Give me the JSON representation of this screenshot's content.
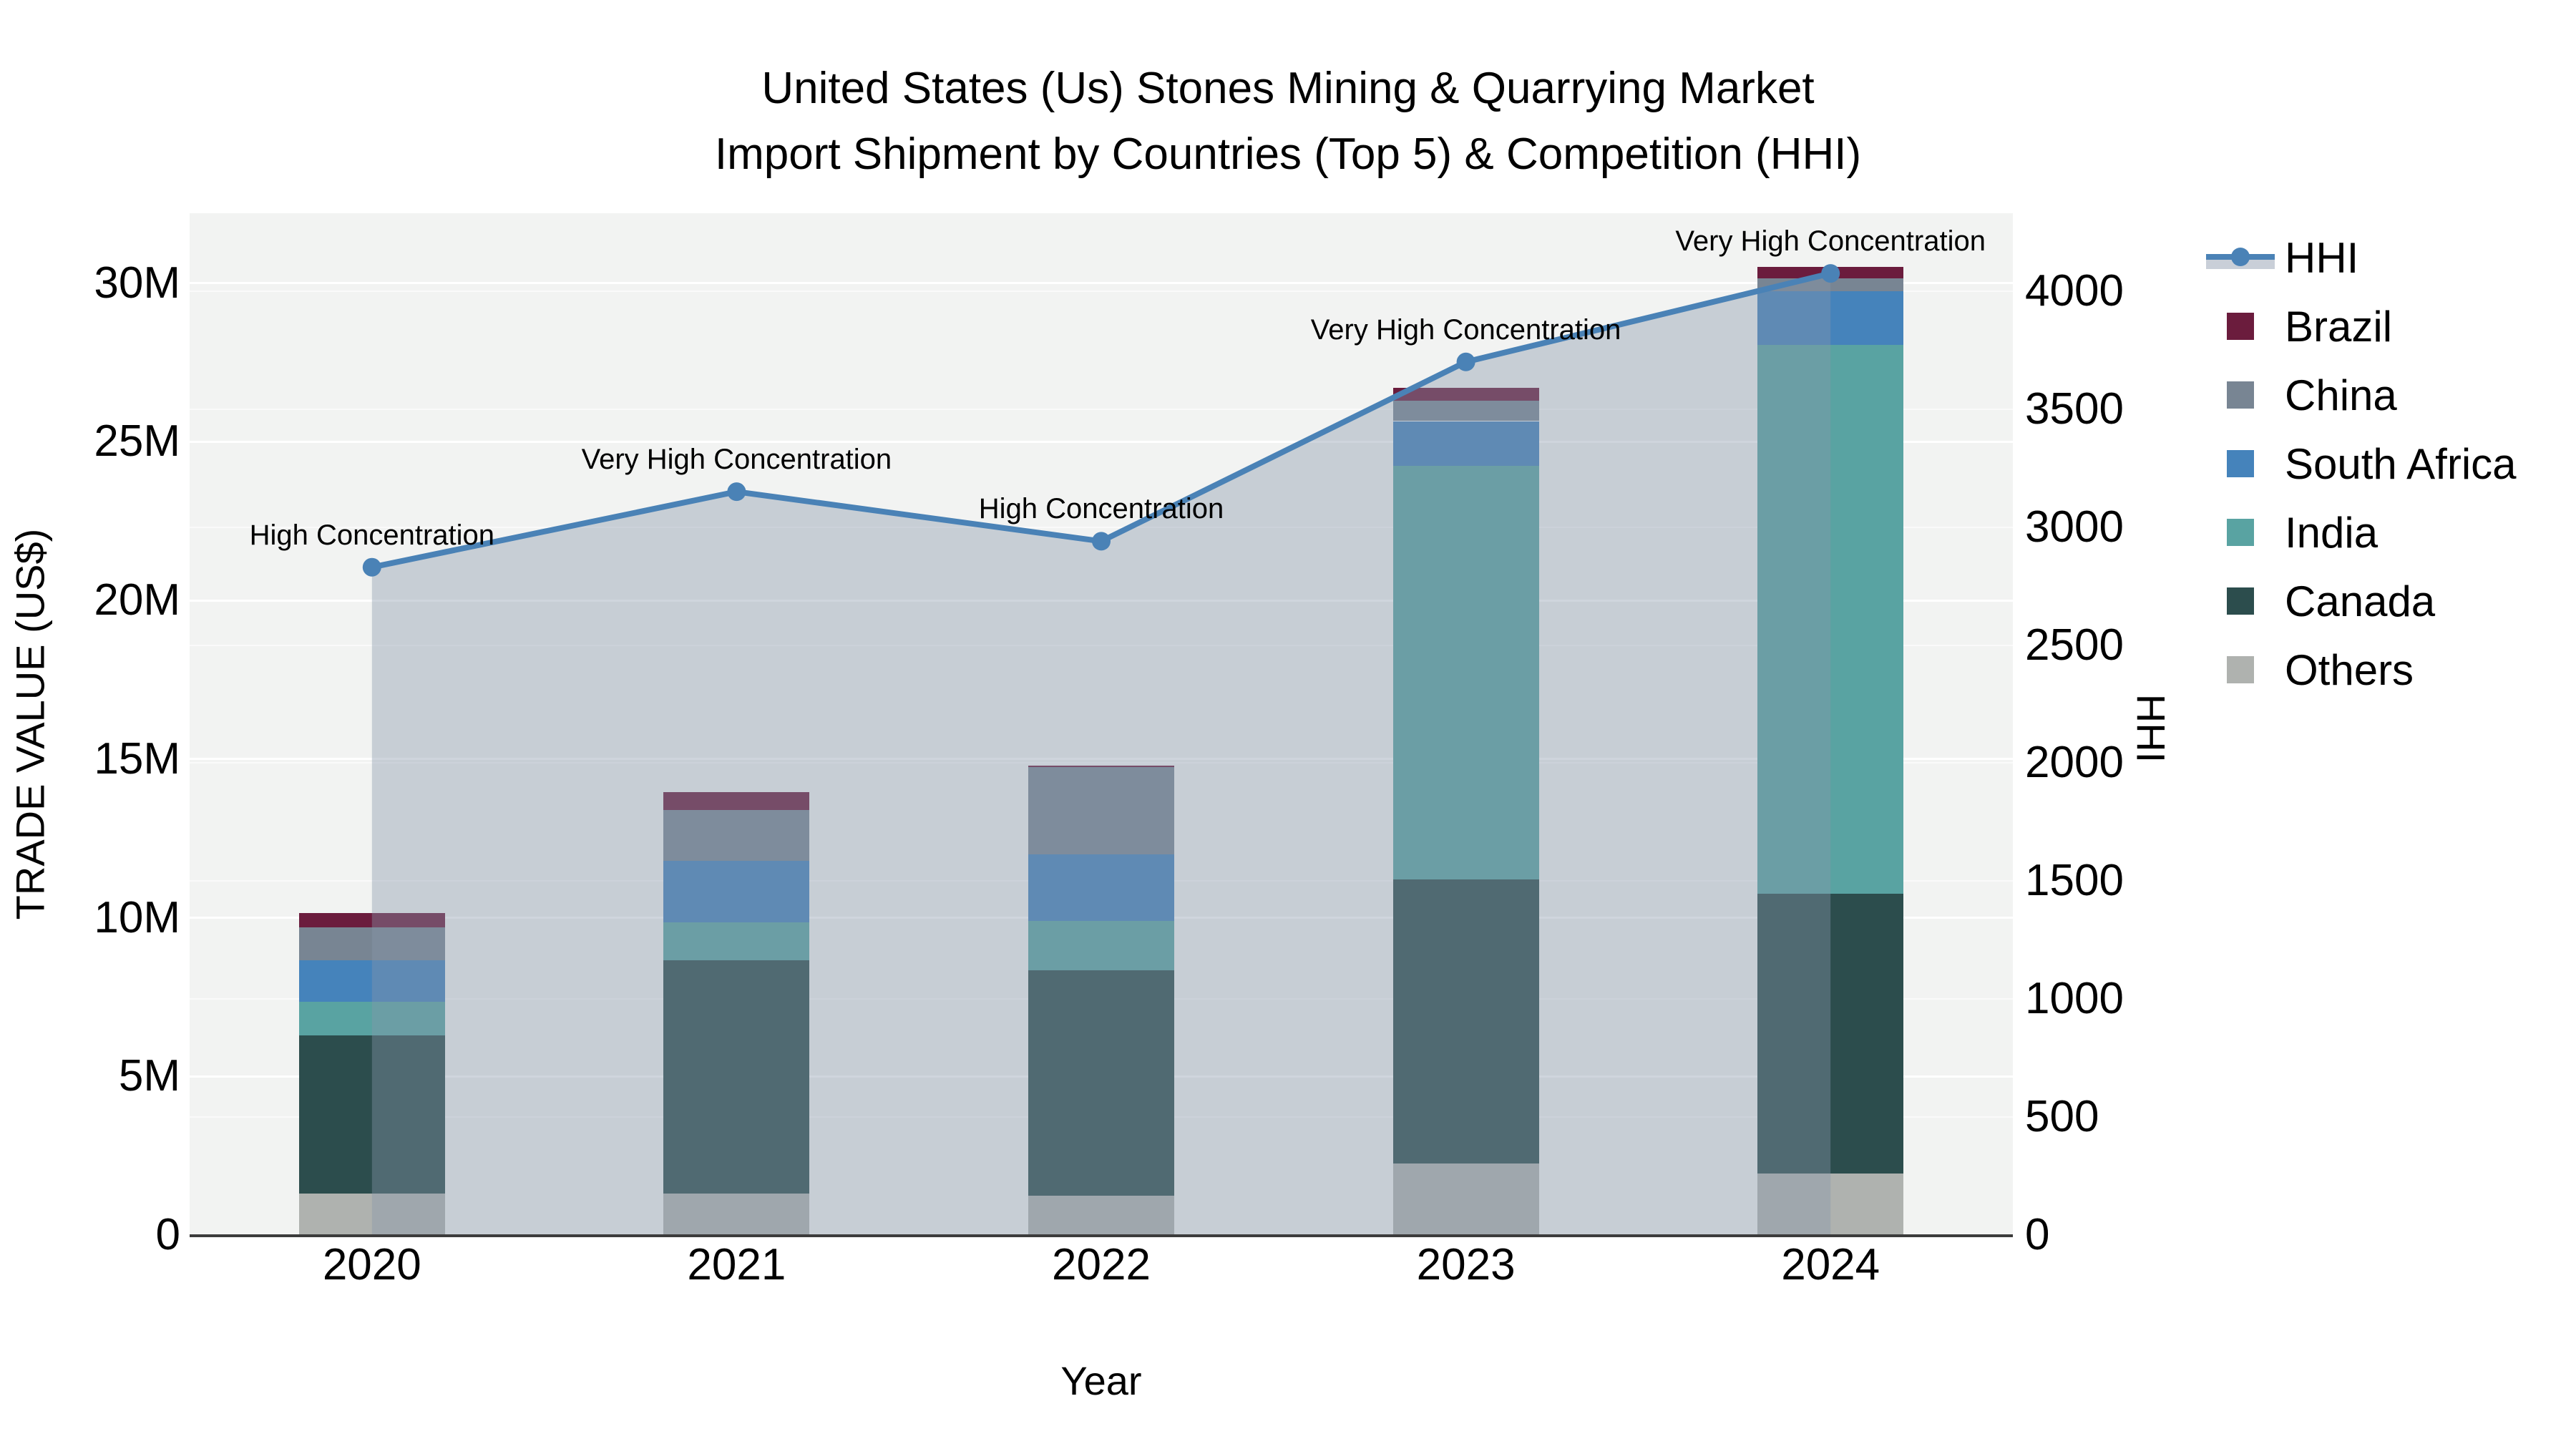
{
  "title": {
    "line1": "United States (Us) Stones Mining & Quarrying Market",
    "line2": "Import Shipment by Countries (Top 5) & Competition (HHI)"
  },
  "axes": {
    "left": {
      "title": "TRADE VALUE (US$)",
      "tick_labels": [
        "0",
        "5M",
        "10M",
        "15M",
        "20M",
        "25M",
        "30M"
      ],
      "tick_values": [
        0,
        5,
        10,
        15,
        20,
        25,
        30
      ]
    },
    "right": {
      "title": "HHI",
      "tick_labels": [
        "0",
        "500",
        "1000",
        "1500",
        "2000",
        "2500",
        "3000",
        "3500",
        "4000"
      ],
      "tick_values": [
        0,
        500,
        1000,
        1500,
        2000,
        2500,
        3000,
        3500,
        4000
      ]
    },
    "x": {
      "title": "Year",
      "categories": [
        "2020",
        "2021",
        "2022",
        "2023",
        "2024"
      ]
    }
  },
  "legend": {
    "items": [
      {
        "label": "HHI",
        "type": "line-area",
        "line_color": "#4a82b6",
        "area_color": "#c9cfd8"
      },
      {
        "label": "Brazil",
        "type": "swatch",
        "color": "#6b1c3d"
      },
      {
        "label": "China",
        "type": "swatch",
        "color": "#788593"
      },
      {
        "label": "South Africa",
        "type": "swatch",
        "color": "#4583bb"
      },
      {
        "label": "India",
        "type": "swatch",
        "color": "#59a3a2"
      },
      {
        "label": "Canada",
        "type": "swatch",
        "color": "#2c4d4d"
      },
      {
        "label": "Others",
        "type": "swatch",
        "color": "#afb2af"
      }
    ]
  },
  "chart_data": {
    "type": "bar",
    "subtype": "stacked-bars-with-line-area-overlay-dual-axis",
    "title": "United States (Us) Stones Mining & Quarrying Market — Import Shipment by Countries (Top 5) & Competition (HHI)",
    "xlabel": "Year",
    "ylabel": "TRADE VALUE (US$)",
    "y2label": "HHI",
    "categories": [
      "2020",
      "2021",
      "2022",
      "2023",
      "2024"
    ],
    "bar_value_unit": "million US$",
    "series": [
      {
        "name": "Others",
        "stack_order": 1,
        "color": "#afb2af",
        "values": [
          1.3,
          1.3,
          1.25,
          2.25,
          1.95
        ]
      },
      {
        "name": "Canada",
        "stack_order": 2,
        "color": "#2c4d4d",
        "values": [
          5.0,
          7.35,
          7.1,
          8.95,
          8.8
        ]
      },
      {
        "name": "India",
        "stack_order": 3,
        "color": "#59a3a2",
        "values": [
          1.05,
          1.2,
          1.55,
          13.05,
          17.3
        ]
      },
      {
        "name": "South Africa",
        "stack_order": 4,
        "color": "#4583bb",
        "values": [
          1.3,
          1.95,
          2.1,
          1.4,
          1.7
        ]
      },
      {
        "name": "China",
        "stack_order": 5,
        "color": "#788593",
        "values": [
          1.05,
          1.6,
          2.75,
          0.65,
          0.4
        ]
      },
      {
        "name": "Brazil",
        "stack_order": 6,
        "color": "#6b1c3d",
        "values": [
          0.45,
          0.55,
          0.05,
          0.4,
          0.35
        ]
      }
    ],
    "bar_totals": [
      10.15,
      13.95,
      14.8,
      26.7,
      30.5
    ],
    "line_series": {
      "name": "HHI",
      "axis": "right",
      "color": "#4a82b6",
      "area_fill": "rgba(136,150,170,0.40)",
      "values": [
        2830,
        3150,
        2940,
        3700,
        4075
      ]
    },
    "annotations": [
      {
        "category": "2020",
        "text": "High Concentration"
      },
      {
        "category": "2021",
        "text": "Very High Concentration"
      },
      {
        "category": "2022",
        "text": "High Concentration"
      },
      {
        "category": "2023",
        "text": "Very High Concentration"
      },
      {
        "category": "2024",
        "text": "Very High Concentration"
      }
    ],
    "ylim": [
      0,
      32.2
    ],
    "y2lim": [
      0,
      4330
    ],
    "grid": true,
    "legend_position": "right",
    "plot_background": "#f2f3f2"
  }
}
